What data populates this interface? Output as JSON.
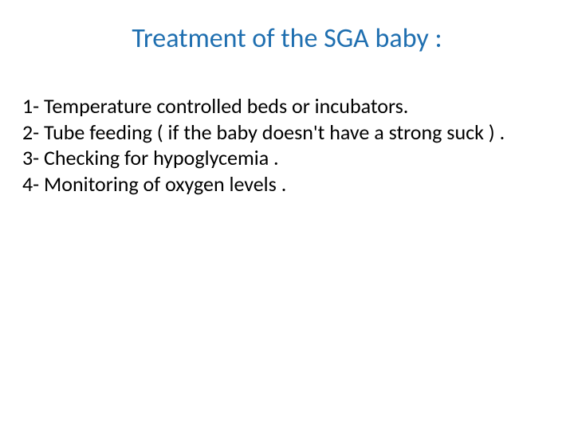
{
  "slide": {
    "title": "Treatment of the SGA baby :",
    "title_color": "#1f6fb0",
    "title_fontsize": 34,
    "body_color": "#000000",
    "body_fontsize": 26,
    "background_color": "#ffffff",
    "lines": [
      "1- Temperature controlled beds or incubators.",
      "2- Tube feeding ( if the baby doesn't have a strong suck ) .",
      "3- Checking for hypoglycemia .",
      "4- Monitoring of oxygen levels ."
    ]
  }
}
